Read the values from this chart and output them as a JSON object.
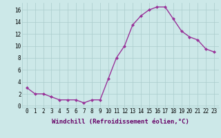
{
  "x": [
    0,
    1,
    2,
    3,
    4,
    5,
    6,
    7,
    8,
    9,
    10,
    11,
    12,
    13,
    14,
    15,
    16,
    17,
    18,
    19,
    20,
    21,
    22,
    23
  ],
  "y": [
    3,
    2,
    2,
    1.5,
    1,
    1,
    1,
    0.5,
    1,
    1,
    4.5,
    8,
    10,
    13.5,
    15,
    16,
    16.5,
    16.5,
    14.5,
    12.5,
    11.5,
    11,
    9.5,
    9
  ],
  "line_color": "#993399",
  "marker": "D",
  "marker_size": 2.0,
  "bg_color": "#cce8e8",
  "grid_color": "#aacccc",
  "xlabel": "Windchill (Refroidissement éolien,°C)",
  "xlabel_fontsize": 6.5,
  "ylabel_ticks": [
    0,
    2,
    4,
    6,
    8,
    10,
    12,
    14,
    16
  ],
  "xtick_labels": [
    "0",
    "1",
    "2",
    "3",
    "4",
    "5",
    "6",
    "7",
    "8",
    "9",
    "10",
    "11",
    "12",
    "13",
    "14",
    "15",
    "16",
    "17",
    "18",
    "19",
    "20",
    "21",
    "22",
    "23"
  ],
  "ylim": [
    -0.3,
    17.2
  ],
  "xlim": [
    -0.6,
    23.6
  ],
  "tick_fontsize": 5.5,
  "linewidth": 1.0
}
